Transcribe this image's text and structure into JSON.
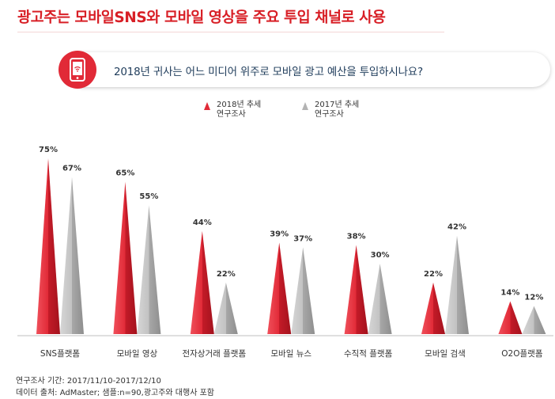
{
  "header": {
    "title": "광고주는 모바일SNS와 모바일 영상을 주요 투입 채널로 사용",
    "question": "2018년 귀사는 어느 미디어 위주로 모바일 광고 예산을 투입하시나요?"
  },
  "legend": [
    {
      "label_line1": "2018년 추세",
      "label_line2": "연구조사",
      "color": "#e12a37"
    },
    {
      "label_line1": "2017년 추세",
      "label_line2": "연구조사",
      "color": "#b3b3b3"
    }
  ],
  "chart_data": {
    "type": "bar",
    "categories": [
      "SNS플랫폼",
      "모바일 영상",
      "전자상거래 플랫폼",
      "모바일 뉴스",
      "수직적 플랫폼",
      "모바일 검색",
      "O2O플랫폼"
    ],
    "series": [
      {
        "name": "2018년 추세 연구조사",
        "values": [
          75,
          65,
          44,
          39,
          38,
          22,
          14
        ],
        "labels": [
          "75%",
          "65%",
          "44%",
          "39%",
          "38%",
          "22%",
          "14%"
        ],
        "color": "#e12a37"
      },
      {
        "name": "2017년 추세 연구조사",
        "values": [
          67,
          55,
          22,
          37,
          30,
          42,
          12
        ],
        "labels": [
          "67%",
          "55%",
          "22%",
          "37%",
          "30%",
          "42%",
          "12%"
        ],
        "color": "#b3b3b3"
      }
    ],
    "ylim": [
      0,
      80
    ],
    "title": "2018년 귀사는 어느 미디어 위주로 모바일 광고 예산을 투입하시나요?",
    "xlabel": "",
    "ylabel": ""
  },
  "footer": {
    "period": "연구조사 기간: 2017/11/10-2017/12/10",
    "source": "데이터 출처: AdMaster; 샘플:n=90,광고주와 대행사 포함"
  }
}
